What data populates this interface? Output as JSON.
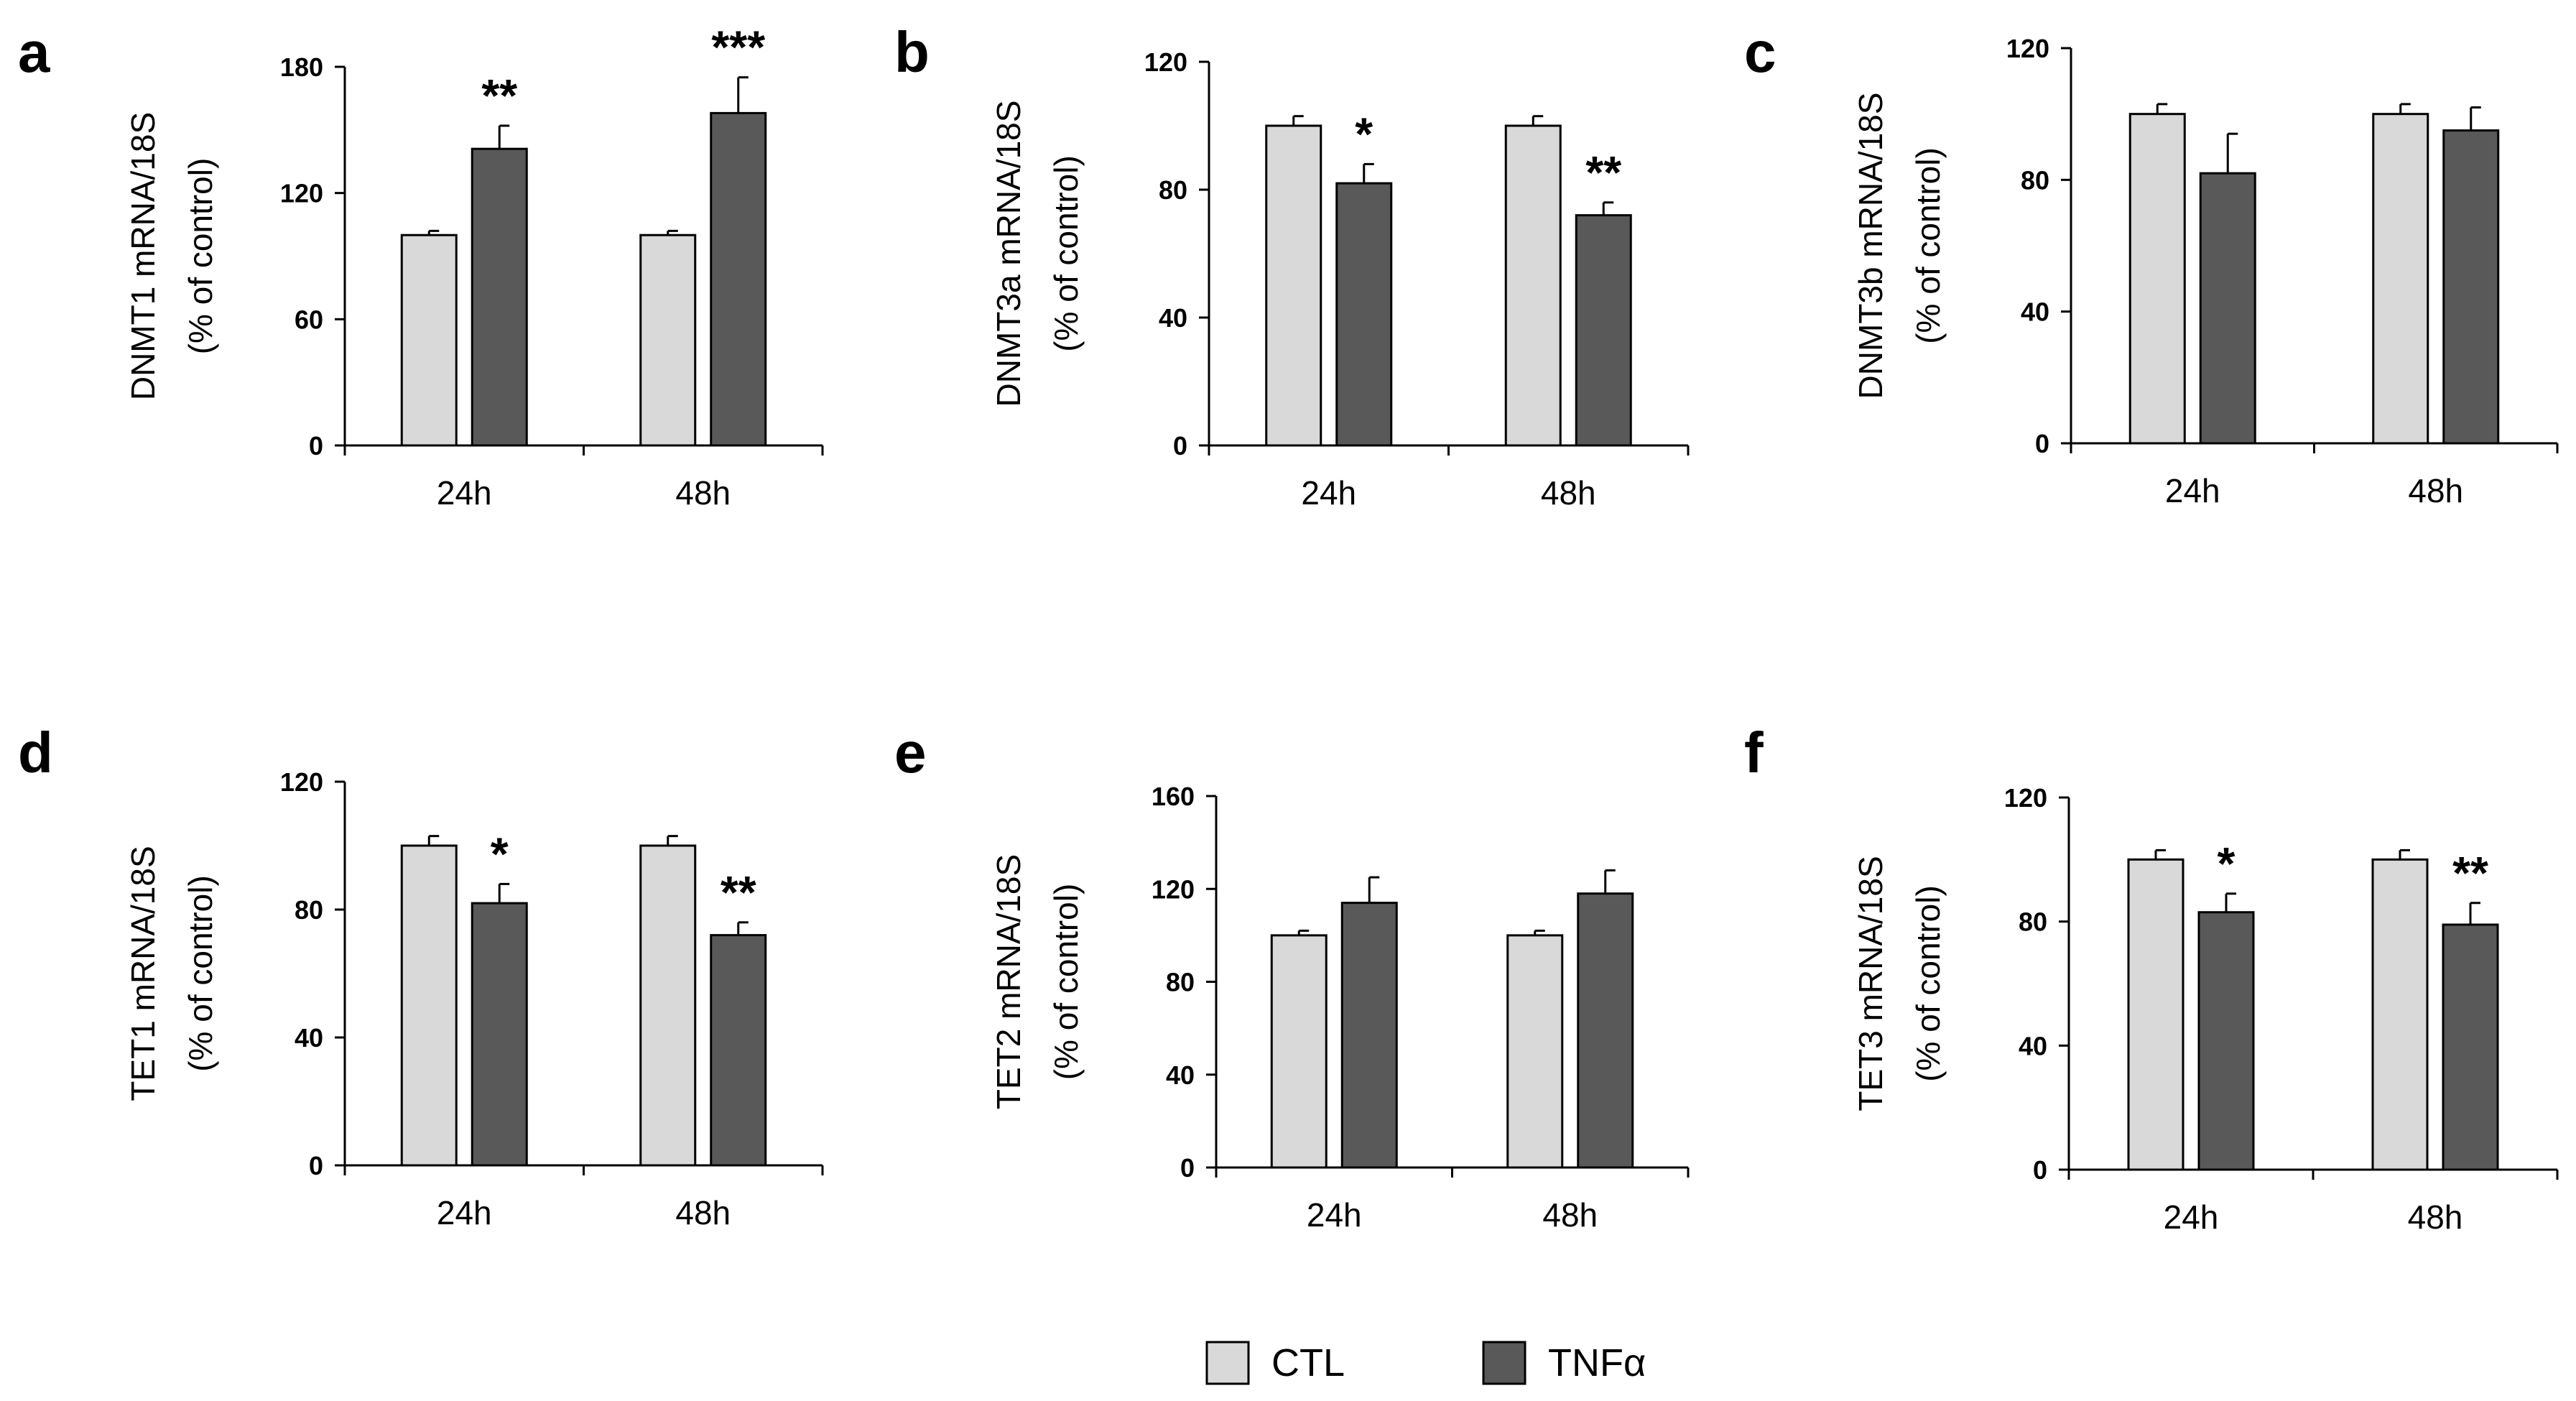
{
  "legend": {
    "items": [
      {
        "label": "CTL",
        "color": "#d9d9d9"
      },
      {
        "label": "TNFα",
        "color": "#595959"
      }
    ]
  },
  "colors": {
    "ctl": "#d9d9d9",
    "tnf": "#595959",
    "stroke": "#000000"
  },
  "chart_data": [
    {
      "panel": "a",
      "type": "bar",
      "ylabel_line1": "DNMT1 mRNA/18S",
      "ylabel_line2": "(% of control)",
      "categories": [
        "24h",
        "48h"
      ],
      "ylim": [
        0,
        180
      ],
      "yticks": [
        0,
        60,
        120,
        180
      ],
      "series": [
        {
          "name": "CTL",
          "values": [
            100,
            100
          ],
          "errors": [
            2,
            2
          ]
        },
        {
          "name": "TNFα",
          "values": [
            141,
            158
          ],
          "errors": [
            11,
            17
          ]
        }
      ],
      "significance": [
        "**",
        "***"
      ]
    },
    {
      "panel": "b",
      "type": "bar",
      "ylabel_line1": "DNMT3a mRNA/18S",
      "ylabel_line2": "(% of control)",
      "categories": [
        "24h",
        "48h"
      ],
      "ylim": [
        0,
        120
      ],
      "yticks": [
        0,
        40,
        80,
        120
      ],
      "series": [
        {
          "name": "CTL",
          "values": [
            100,
            100
          ],
          "errors": [
            3,
            3
          ]
        },
        {
          "name": "TNFα",
          "values": [
            82,
            72
          ],
          "errors": [
            6,
            4
          ]
        }
      ],
      "significance": [
        "*",
        "**"
      ]
    },
    {
      "panel": "c",
      "type": "bar",
      "ylabel_line1": "DNMT3b mRNA/18S",
      "ylabel_line2": "(% of control)",
      "categories": [
        "24h",
        "48h"
      ],
      "ylim": [
        0,
        120
      ],
      "yticks": [
        0,
        40,
        80,
        120
      ],
      "series": [
        {
          "name": "CTL",
          "values": [
            100,
            100
          ],
          "errors": [
            3,
            3
          ]
        },
        {
          "name": "TNFα",
          "values": [
            82,
            95
          ],
          "errors": [
            12,
            7
          ]
        }
      ],
      "significance": [
        "",
        ""
      ]
    },
    {
      "panel": "d",
      "type": "bar",
      "ylabel_line1": "TET1 mRNA/18S",
      "ylabel_line2": "(% of control)",
      "categories": [
        "24h",
        "48h"
      ],
      "ylim": [
        0,
        120
      ],
      "yticks": [
        0,
        40,
        80,
        120
      ],
      "series": [
        {
          "name": "CTL",
          "values": [
            100,
            100
          ],
          "errors": [
            3,
            3
          ]
        },
        {
          "name": "TNFα",
          "values": [
            82,
            72
          ],
          "errors": [
            6,
            4
          ]
        }
      ],
      "significance": [
        "*",
        "**"
      ]
    },
    {
      "panel": "e",
      "type": "bar",
      "ylabel_line1": "TET2 mRNA/18S",
      "ylabel_line2": "(% of control)",
      "categories": [
        "24h",
        "48h"
      ],
      "ylim": [
        0,
        160
      ],
      "yticks": [
        0,
        40,
        80,
        120,
        160
      ],
      "series": [
        {
          "name": "CTL",
          "values": [
            100,
            100
          ],
          "errors": [
            2,
            2
          ]
        },
        {
          "name": "TNFα",
          "values": [
            114,
            118
          ],
          "errors": [
            11,
            10
          ]
        }
      ],
      "significance": [
        "",
        ""
      ]
    },
    {
      "panel": "f",
      "type": "bar",
      "ylabel_line1": "TET3 mRNA/18S",
      "ylabel_line2": "(% of control)",
      "categories": [
        "24h",
        "48h"
      ],
      "ylim": [
        0,
        120
      ],
      "yticks": [
        0,
        40,
        80,
        120
      ],
      "series": [
        {
          "name": "CTL",
          "values": [
            100,
            100
          ],
          "errors": [
            3,
            3
          ]
        },
        {
          "name": "TNFα",
          "values": [
            83,
            79
          ],
          "errors": [
            6,
            7
          ]
        }
      ],
      "significance": [
        "*",
        "**"
      ]
    }
  ]
}
